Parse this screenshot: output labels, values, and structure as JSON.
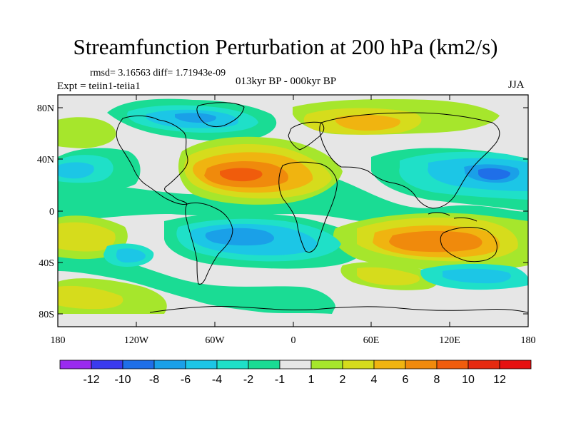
{
  "title": "Streamfunction Perturbation at 200 hPa (km2/s)",
  "stats_line": "rmsd= 3.16563 diff= 1.71943e-09",
  "experiment": "Expt = teiin1-teiia1",
  "period": "013kyr BP - 000kyr BP",
  "season": "JJA",
  "lat_ticks": [
    "80N",
    "40N",
    "0",
    "40S",
    "80S"
  ],
  "lon_ticks": [
    "180",
    "120W",
    "60W",
    "0",
    "60E",
    "120E",
    "180"
  ],
  "colorbar": {
    "labels": [
      "-12",
      "-10",
      "-8",
      "-6",
      "-4",
      "-2",
      "-1",
      "1",
      "2",
      "4",
      "6",
      "8",
      "10",
      "12"
    ],
    "colors": [
      "#9a2bef",
      "#3b3bee",
      "#1f6fe8",
      "#1aa0e8",
      "#1cc6e6",
      "#1fe0c8",
      "#1adc94",
      "#e6e6e6",
      "#a6e62c",
      "#d6dc1c",
      "#f0b410",
      "#f08a0c",
      "#f05c0c",
      "#e62a10",
      "#e61010"
    ]
  },
  "palette": {
    "background": "#e6e6e6",
    "neg2": "#1adc94",
    "neg4": "#1fe0c8",
    "neg6": "#1cc6e6",
    "neg8": "#1aa0e8",
    "neg10": "#1f6fe8",
    "pos2": "#a6e62c",
    "pos4": "#d6dc1c",
    "pos6": "#f0b410",
    "pos8": "#f08a0c",
    "pos10": "#f05c0c"
  }
}
